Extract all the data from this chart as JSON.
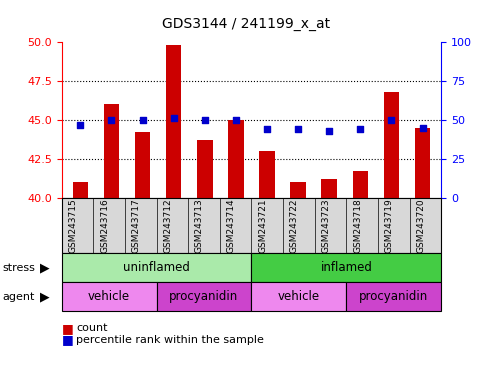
{
  "title": "GDS3144 / 241199_x_at",
  "samples": [
    "GSM243715",
    "GSM243716",
    "GSM243717",
    "GSM243712",
    "GSM243713",
    "GSM243714",
    "GSM243721",
    "GSM243722",
    "GSM243723",
    "GSM243718",
    "GSM243719",
    "GSM243720"
  ],
  "counts": [
    41.0,
    46.0,
    44.2,
    49.8,
    43.7,
    45.0,
    43.0,
    41.0,
    41.2,
    41.7,
    46.8,
    44.5
  ],
  "percentiles": [
    47,
    50,
    50,
    51,
    50,
    50,
    44,
    44,
    43,
    44,
    50,
    45
  ],
  "ylim_left": [
    40,
    50
  ],
  "ylim_right": [
    0,
    100
  ],
  "yticks_left": [
    40,
    42.5,
    45,
    47.5,
    50
  ],
  "yticks_right": [
    0,
    25,
    50,
    75,
    100
  ],
  "bar_color": "#cc0000",
  "scatter_color": "#0000cc",
  "stress_groups": [
    {
      "label": "uninflamed",
      "start": 0,
      "end": 6,
      "color": "#aaeaaa"
    },
    {
      "label": "inflamed",
      "start": 6,
      "end": 12,
      "color": "#44cc44"
    }
  ],
  "agent_groups": [
    {
      "label": "vehicle",
      "start": 0,
      "end": 3,
      "color": "#ee88ee"
    },
    {
      "label": "procyanidin",
      "start": 3,
      "end": 6,
      "color": "#cc44cc"
    },
    {
      "label": "vehicle",
      "start": 6,
      "end": 9,
      "color": "#ee88ee"
    },
    {
      "label": "procyanidin",
      "start": 9,
      "end": 12,
      "color": "#cc44cc"
    }
  ],
  "legend_count_label": "count",
  "legend_pct_label": "percentile rank within the sample",
  "stress_label": "stress",
  "agent_label": "agent",
  "bg_color": "#ffffff",
  "plot_bg": "#ffffff",
  "xtick_bg": "#d8d8d8",
  "bar_width": 0.5,
  "n_samples": 12
}
